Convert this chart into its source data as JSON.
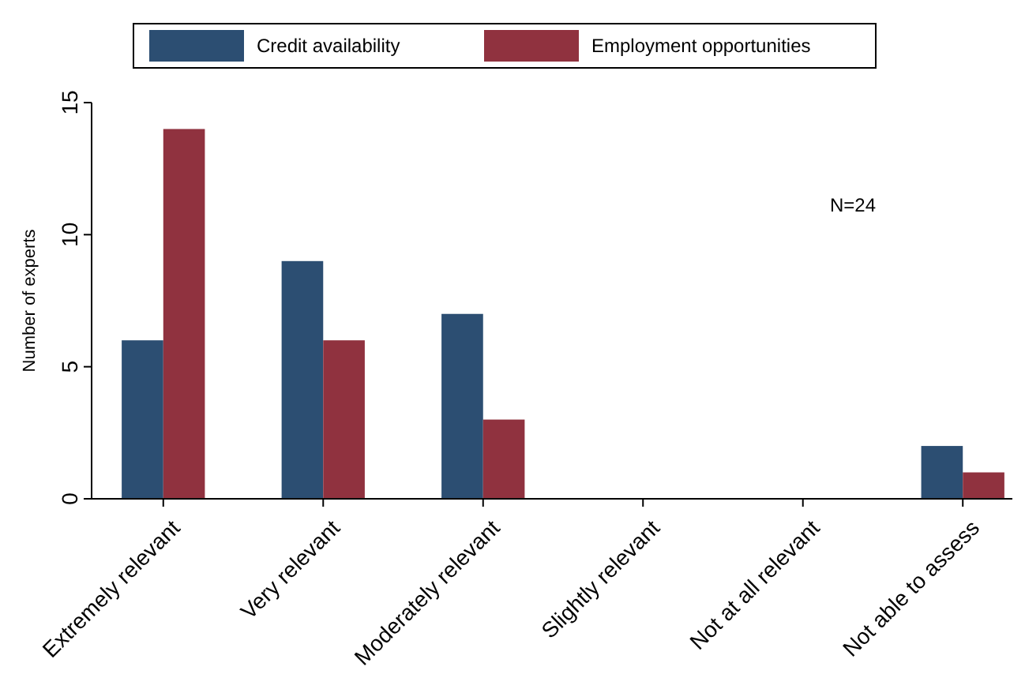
{
  "chart_data": {
    "type": "bar",
    "ylabel": "Number of experts",
    "categories": [
      "Extremely relevant",
      "Very relevant",
      "Moderately relevant",
      "Slightly relevant",
      "Not at all relevant",
      "Not able to assess"
    ],
    "series": [
      {
        "name": "Credit availability",
        "color": "#2c4e72",
        "values": [
          6,
          9,
          7,
          0,
          0,
          2
        ]
      },
      {
        "name": "Employment opportunities",
        "color": "#90323f",
        "values": [
          14,
          6,
          3,
          0,
          0,
          1
        ]
      }
    ],
    "ylim": [
      0,
      15
    ],
    "yticks": [
      0,
      5,
      10,
      15
    ],
    "grid": false,
    "legend": "top",
    "annotations": [
      "N=24"
    ]
  }
}
